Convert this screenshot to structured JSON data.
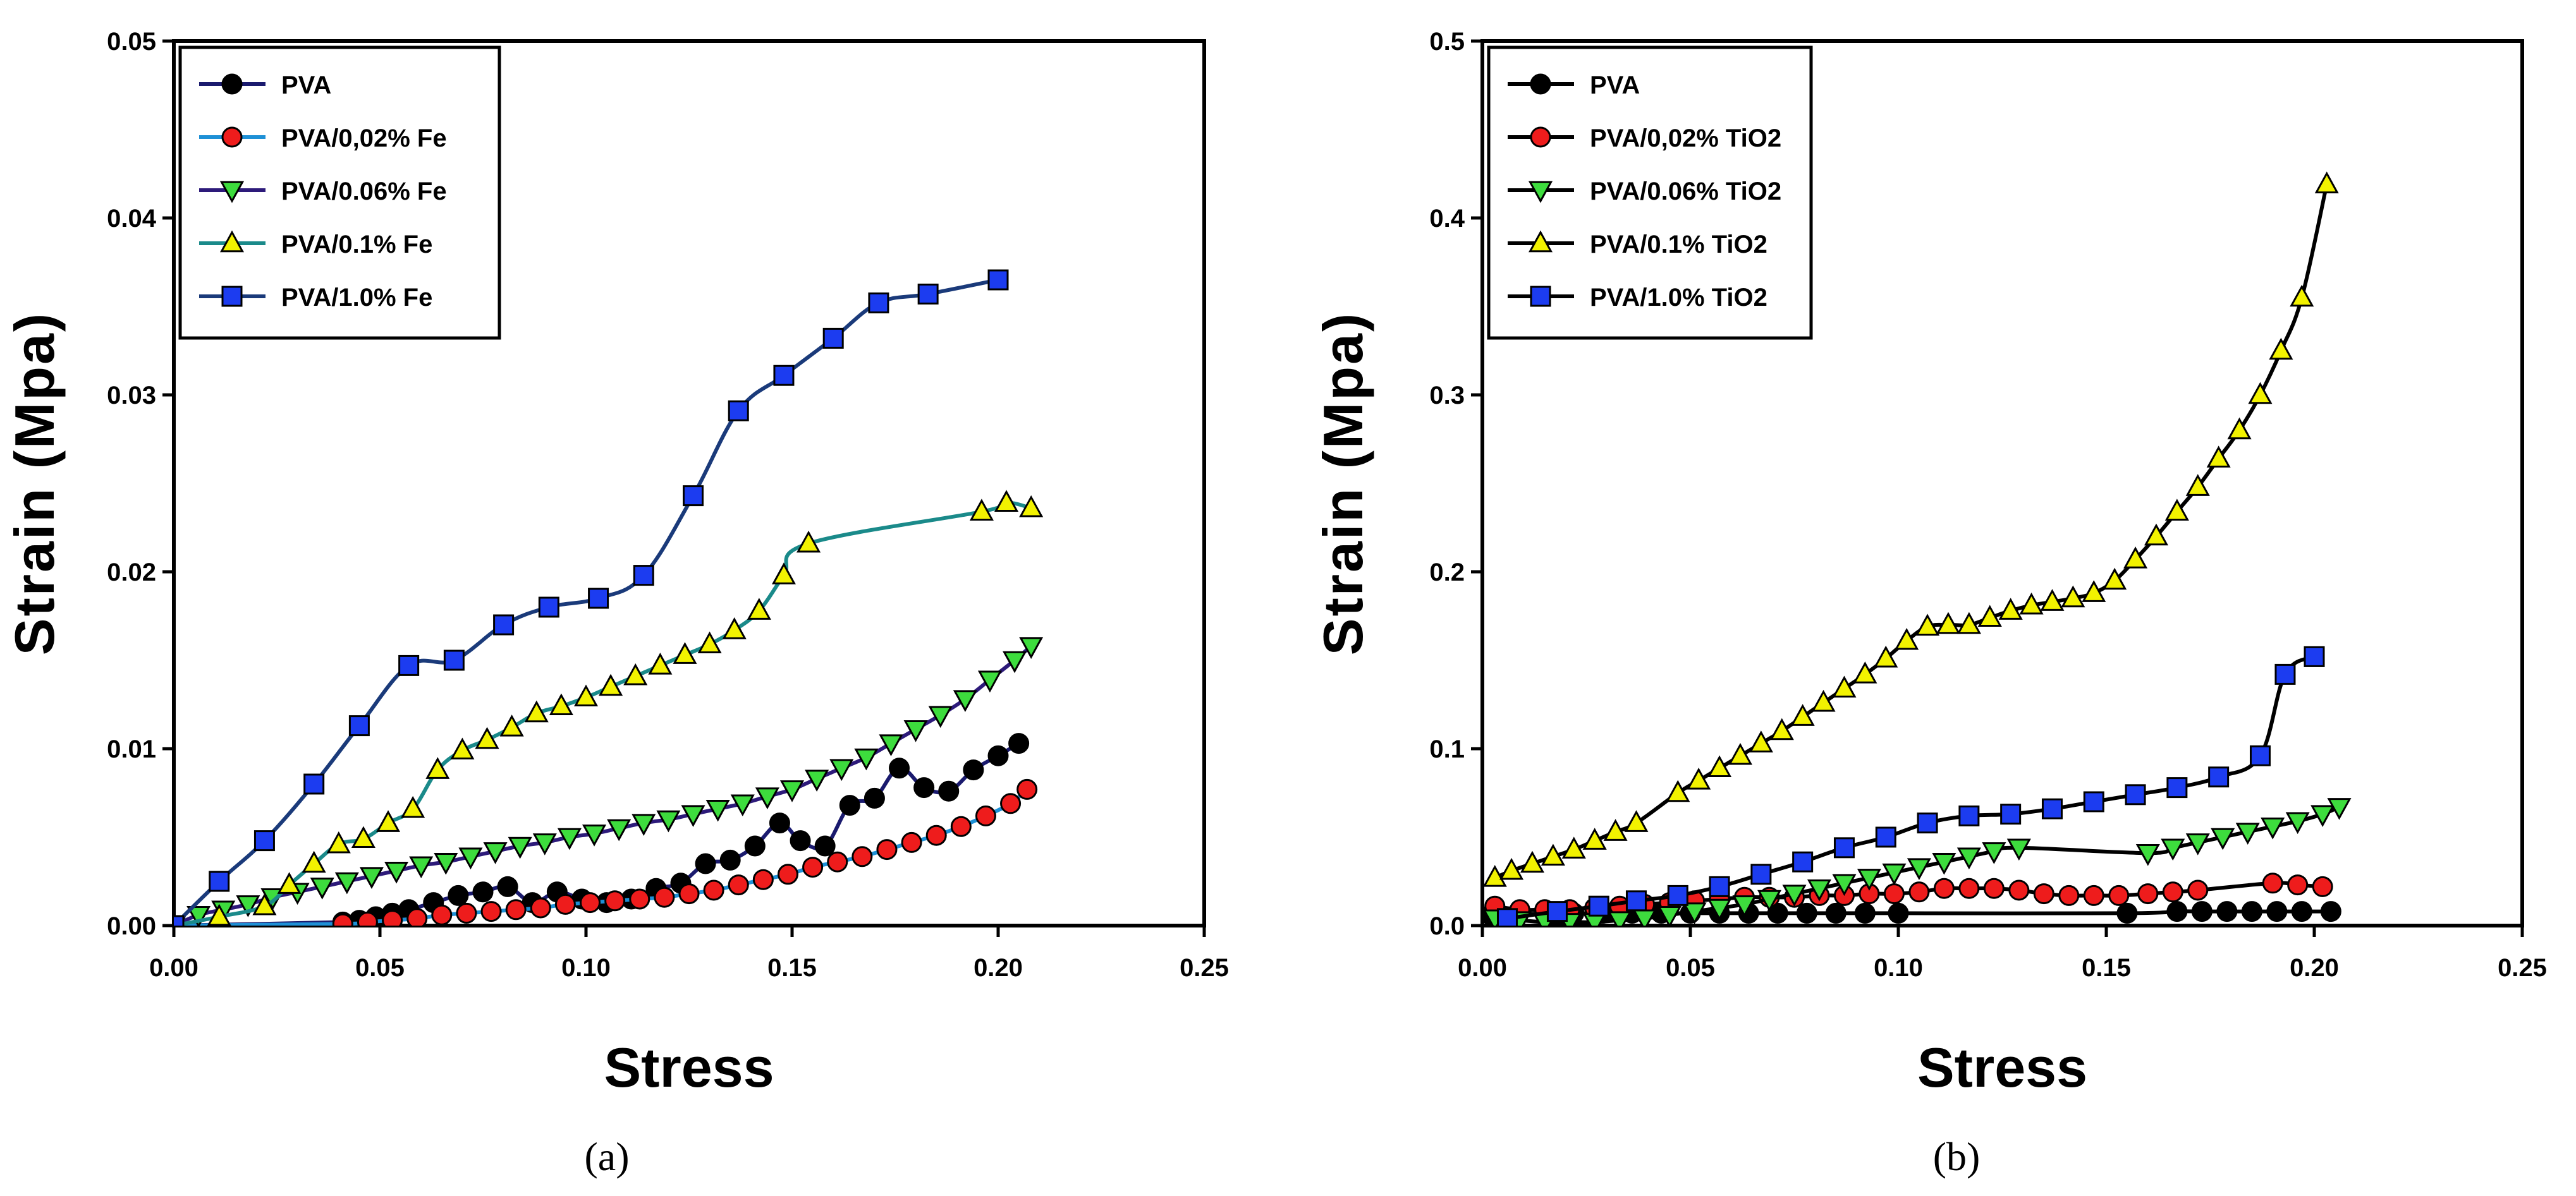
{
  "chart_data": [
    {
      "type": "line",
      "panel_label": "(a)",
      "panel_letter": "a",
      "xlabel": "Stress",
      "ylabel": "Strain (Mpa)",
      "xlim": [
        0,
        0.25
      ],
      "ylim": [
        0,
        0.05
      ],
      "xticks": [
        "0.00",
        "0.05",
        "0.10",
        "0.15",
        "0.20",
        "0.25"
      ],
      "yticks": [
        "0.00",
        "0.01",
        "0.02",
        "0.03",
        "0.04",
        "0.05"
      ],
      "xtick_values": [
        0,
        0.05,
        0.1,
        0.15,
        0.2,
        0.25
      ],
      "ytick_values": [
        0,
        0.01,
        0.02,
        0.03,
        0.04,
        0.05
      ],
      "grid": false,
      "legend_position": "top-left",
      "series": [
        {
          "name": "PVA",
          "marker": "circle",
          "marker_color": "#000000",
          "line_color": "#1a1a6e",
          "x": [
            0.0,
            0.041,
            0.045,
            0.049,
            0.053,
            0.057,
            0.063,
            0.069,
            0.075,
            0.081,
            0.087,
            0.093,
            0.099,
            0.105,
            0.111,
            0.117,
            0.123,
            0.129,
            0.135,
            0.141,
            0.147,
            0.152,
            0.158,
            0.164,
            0.17,
            0.176,
            0.182,
            0.188,
            0.194,
            0.2,
            0.205
          ],
          "y": [
            0.0,
            0.0002,
            0.0003,
            0.0005,
            0.0007,
            0.0009,
            0.0013,
            0.0017,
            0.0019,
            0.0022,
            0.0013,
            0.0019,
            0.0015,
            0.0013,
            0.0015,
            0.0021,
            0.0024,
            0.0035,
            0.0037,
            0.0045,
            0.0058,
            0.0048,
            0.0045,
            0.0068,
            0.0072,
            0.0089,
            0.0078,
            0.0076,
            0.0088,
            0.0096,
            0.0103
          ]
        },
        {
          "name": "PVA/0,02% Fe",
          "marker": "circle",
          "marker_color": "#ee1c1c",
          "line_color": "#1e90d6",
          "x": [
            0.0,
            0.041,
            0.047,
            0.053,
            0.059,
            0.065,
            0.071,
            0.077,
            0.083,
            0.089,
            0.095,
            0.101,
            0.107,
            0.113,
            0.119,
            0.125,
            0.131,
            0.137,
            0.143,
            0.149,
            0.155,
            0.161,
            0.167,
            0.173,
            0.179,
            0.185,
            0.191,
            0.197,
            0.203,
            0.207
          ],
          "y": [
            0.0,
            0.0001,
            0.0002,
            0.0003,
            0.0004,
            0.0006,
            0.0007,
            0.0008,
            0.0009,
            0.001,
            0.0012,
            0.0013,
            0.0014,
            0.0015,
            0.0016,
            0.0018,
            0.002,
            0.0023,
            0.0026,
            0.0029,
            0.0033,
            0.0036,
            0.0039,
            0.0043,
            0.0047,
            0.0051,
            0.0056,
            0.0062,
            0.0069,
            0.0077
          ]
        },
        {
          "name": "PVA/0.06% Fe",
          "marker": "triangle-down",
          "marker_color": "#3ddc3d",
          "line_color": "#2d1a7a",
          "x": [
            0.0,
            0.006,
            0.012,
            0.018,
            0.024,
            0.03,
            0.036,
            0.042,
            0.048,
            0.054,
            0.06,
            0.066,
            0.072,
            0.078,
            0.084,
            0.09,
            0.096,
            0.102,
            0.108,
            0.114,
            0.12,
            0.126,
            0.132,
            0.138,
            0.144,
            0.15,
            0.156,
            0.162,
            0.168,
            0.174,
            0.18,
            0.186,
            0.192,
            0.198,
            0.204,
            0.208
          ],
          "y": [
            0.0,
            0.0006,
            0.0009,
            0.0012,
            0.0016,
            0.0019,
            0.0022,
            0.0025,
            0.0028,
            0.0031,
            0.0034,
            0.0036,
            0.0039,
            0.0042,
            0.0045,
            0.0047,
            0.005,
            0.0052,
            0.0055,
            0.0058,
            0.006,
            0.0063,
            0.0066,
            0.0069,
            0.0073,
            0.0077,
            0.0083,
            0.0089,
            0.0095,
            0.0103,
            0.0111,
            0.0119,
            0.0128,
            0.0139,
            0.015,
            0.0158
          ]
        },
        {
          "name": "PVA/0.1% Fe",
          "marker": "triangle-up",
          "marker_color": "#f2f200",
          "line_color": "#1a8a8a",
          "x": [
            0.0,
            0.011,
            0.022,
            0.028,
            0.034,
            0.04,
            0.046,
            0.052,
            0.058,
            0.064,
            0.07,
            0.076,
            0.082,
            0.088,
            0.094,
            0.1,
            0.106,
            0.112,
            0.118,
            0.124,
            0.13,
            0.136,
            0.142,
            0.148,
            0.154,
            0.196,
            0.202,
            0.208
          ],
          "y": [
            0.0,
            0.0005,
            0.0011,
            0.0023,
            0.0035,
            0.0046,
            0.0049,
            0.0058,
            0.0066,
            0.0088,
            0.0099,
            0.0105,
            0.0112,
            0.012,
            0.0124,
            0.0129,
            0.0135,
            0.0141,
            0.0147,
            0.0153,
            0.0159,
            0.0167,
            0.0178,
            0.0198,
            0.0216,
            0.0234,
            0.0239,
            0.0236
          ]
        },
        {
          "name": "PVA/1.0% Fe",
          "marker": "square",
          "marker_color": "#1c3cf0",
          "line_color": "#1a3a7a",
          "x": [
            0.0,
            0.011,
            0.022,
            0.034,
            0.045,
            0.057,
            0.068,
            0.08,
            0.091,
            0.103,
            0.114,
            0.126,
            0.137,
            0.148,
            0.16,
            0.171,
            0.183,
            0.2
          ],
          "y": [
            0.0,
            0.0025,
            0.0048,
            0.008,
            0.0113,
            0.0147,
            0.015,
            0.017,
            0.018,
            0.0185,
            0.0198,
            0.0243,
            0.0291,
            0.0311,
            0.0332,
            0.0352,
            0.0357,
            0.0365
          ]
        }
      ]
    },
    {
      "type": "line",
      "panel_label": "(b)",
      "panel_letter": "b",
      "xlabel": "Stress",
      "ylabel": "Strain (Mpa)",
      "xlim": [
        0,
        0.25
      ],
      "ylim": [
        0,
        0.5
      ],
      "xticks": [
        "0.00",
        "0.05",
        "0.10",
        "0.15",
        "0.20",
        "0.25"
      ],
      "yticks": [
        "0.0",
        "0.1",
        "0.2",
        "0.3",
        "0.4",
        "0.5"
      ],
      "xtick_values": [
        0,
        0.05,
        0.1,
        0.15,
        0.2,
        0.25
      ],
      "ytick_values": [
        0,
        0.1,
        0.2,
        0.3,
        0.4,
        0.5
      ],
      "grid": false,
      "legend_position": "top-left",
      "series": [
        {
          "name": "PVA",
          "marker": "circle",
          "marker_color": "#000000",
          "line_color": "#000000",
          "x": [
            0.002,
            0.008,
            0.015,
            0.022,
            0.029,
            0.036,
            0.043,
            0.05,
            0.057,
            0.064,
            0.071,
            0.078,
            0.085,
            0.092,
            0.1,
            0.155,
            0.167,
            0.173,
            0.179,
            0.185,
            0.191,
            0.197,
            0.204
          ],
          "y": [
            0.006,
            0.006,
            0.007,
            0.007,
            0.007,
            0.007,
            0.007,
            0.007,
            0.007,
            0.007,
            0.007,
            0.007,
            0.007,
            0.007,
            0.007,
            0.007,
            0.008,
            0.008,
            0.008,
            0.008,
            0.008,
            0.008,
            0.008
          ]
        },
        {
          "name": "PVA/0,02% TiO2",
          "marker": "circle",
          "marker_color": "#ee1c1c",
          "line_color": "#000000",
          "x": [
            0.003,
            0.009,
            0.015,
            0.021,
            0.027,
            0.033,
            0.039,
            0.045,
            0.051,
            0.057,
            0.063,
            0.069,
            0.075,
            0.081,
            0.087,
            0.093,
            0.099,
            0.105,
            0.111,
            0.117,
            0.123,
            0.129,
            0.135,
            0.141,
            0.147,
            0.153,
            0.16,
            0.166,
            0.172,
            0.19,
            0.196,
            0.202
          ],
          "y": [
            0.011,
            0.009,
            0.009,
            0.009,
            0.01,
            0.011,
            0.012,
            0.013,
            0.014,
            0.015,
            0.016,
            0.016,
            0.016,
            0.017,
            0.017,
            0.018,
            0.018,
            0.019,
            0.021,
            0.021,
            0.021,
            0.02,
            0.018,
            0.017,
            0.017,
            0.017,
            0.018,
            0.019,
            0.02,
            0.024,
            0.023,
            0.022
          ]
        },
        {
          "name": "PVA/0.06% TiO2",
          "marker": "triangle-down",
          "marker_color": "#3ddc3d",
          "line_color": "#000000",
          "x": [
            0.003,
            0.009,
            0.015,
            0.021,
            0.027,
            0.033,
            0.039,
            0.045,
            0.051,
            0.057,
            0.063,
            0.069,
            0.075,
            0.081,
            0.087,
            0.093,
            0.099,
            0.105,
            0.111,
            0.117,
            0.123,
            0.129,
            0.16,
            0.166,
            0.172,
            0.178,
            0.184,
            0.19,
            0.196,
            0.202,
            0.206
          ],
          "y": [
            0.004,
            0.003,
            0.002,
            0.002,
            0.002,
            0.003,
            0.004,
            0.006,
            0.008,
            0.01,
            0.012,
            0.015,
            0.018,
            0.021,
            0.024,
            0.027,
            0.03,
            0.033,
            0.036,
            0.039,
            0.042,
            0.044,
            0.041,
            0.044,
            0.047,
            0.05,
            0.053,
            0.056,
            0.059,
            0.063,
            0.067
          ]
        },
        {
          "name": "PVA/0.1% TiO2",
          "marker": "triangle-up",
          "marker_color": "#f2f200",
          "line_color": "#000000",
          "x": [
            0.003,
            0.007,
            0.012,
            0.017,
            0.022,
            0.027,
            0.032,
            0.037,
            0.047,
            0.052,
            0.057,
            0.062,
            0.067,
            0.072,
            0.077,
            0.082,
            0.087,
            0.092,
            0.097,
            0.102,
            0.107,
            0.112,
            0.117,
            0.122,
            0.127,
            0.132,
            0.137,
            0.142,
            0.147,
            0.152,
            0.157,
            0.162,
            0.167,
            0.172,
            0.177,
            0.182,
            0.187,
            0.192,
            0.197,
            0.203
          ],
          "y": [
            0.027,
            0.031,
            0.035,
            0.039,
            0.043,
            0.048,
            0.053,
            0.058,
            0.075,
            0.082,
            0.089,
            0.096,
            0.103,
            0.11,
            0.118,
            0.126,
            0.134,
            0.142,
            0.151,
            0.161,
            0.169,
            0.17,
            0.17,
            0.174,
            0.178,
            0.181,
            0.183,
            0.185,
            0.188,
            0.195,
            0.207,
            0.22,
            0.234,
            0.248,
            0.264,
            0.28,
            0.3,
            0.325,
            0.355,
            0.419
          ]
        },
        {
          "name": "PVA/1.0% TiO2",
          "marker": "square",
          "marker_color": "#1c3cf0",
          "line_color": "#000000",
          "x": [
            0.006,
            0.018,
            0.028,
            0.037,
            0.047,
            0.057,
            0.067,
            0.077,
            0.087,
            0.097,
            0.107,
            0.117,
            0.127,
            0.137,
            0.147,
            0.157,
            0.167,
            0.177,
            0.187,
            0.193,
            0.2
          ],
          "y": [
            0.004,
            0.008,
            0.011,
            0.014,
            0.017,
            0.022,
            0.029,
            0.036,
            0.044,
            0.05,
            0.058,
            0.062,
            0.063,
            0.066,
            0.07,
            0.074,
            0.078,
            0.084,
            0.096,
            0.142,
            0.152
          ]
        }
      ]
    }
  ]
}
